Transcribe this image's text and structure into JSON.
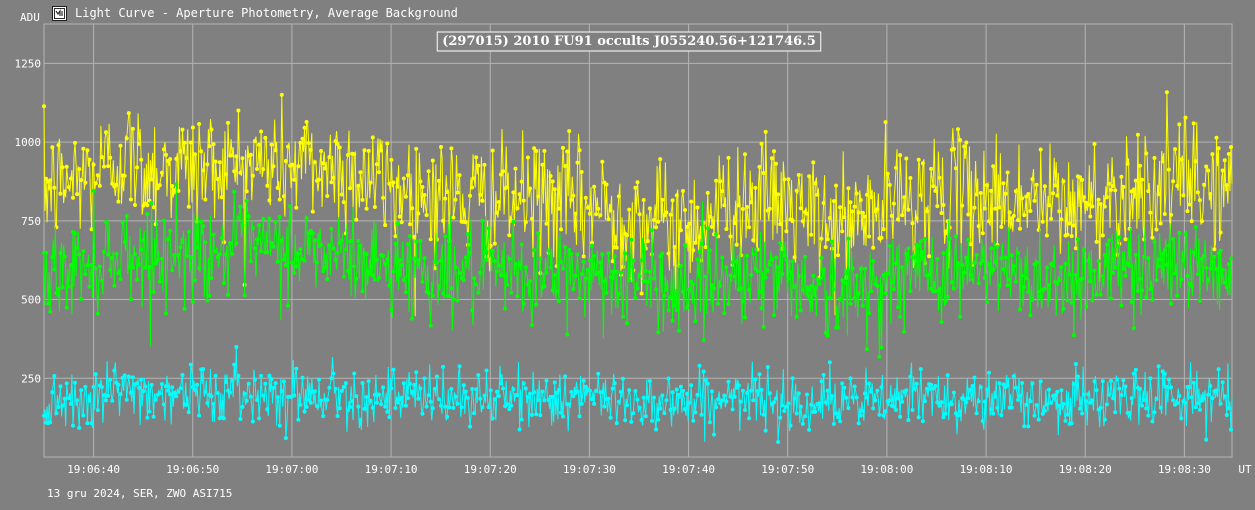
{
  "window": {
    "title": "Light Curve - Aperture Photometry, Average Background",
    "icon": "light-curve-app-icon"
  },
  "footer": {
    "text": "13 gru 2024, SER, ZWO ASI715"
  },
  "colors": {
    "background": "#808080",
    "grid": "#b4b4b4",
    "axis_text": "#ffffff",
    "series_yellow": "#ffff00",
    "series_green": "#00ff00",
    "series_cyan": "#00ffff"
  },
  "chart_data": {
    "type": "line",
    "title": "(297015) 2010 FU91 occults J055240.56+121746.5",
    "ylabel": "ADU",
    "xlabel": "UT",
    "ylim": [
      0,
      1375
    ],
    "yticks": [
      250,
      500,
      750,
      1000,
      1250
    ],
    "x_tick_labels": [
      "19:06:40",
      "19:06:50",
      "19:07:00",
      "19:07:10",
      "19:07:20",
      "19:07:30",
      "19:07:40",
      "19:07:50",
      "19:08:00",
      "19:08:10",
      "19:08:20",
      "19:08:30"
    ],
    "grid": true,
    "markers": true,
    "series": [
      {
        "color": "#ffff00",
        "x": [
          "19:06:35",
          "19:06:40",
          "19:06:43",
          "19:06:45",
          "19:06:50",
          "19:06:55",
          "19:07:00",
          "19:07:05",
          "19:07:10",
          "19:07:15",
          "19:07:20",
          "19:07:25",
          "19:07:30",
          "19:07:35",
          "19:07:40",
          "19:07:45",
          "19:07:50",
          "19:07:55",
          "19:08:00",
          "19:08:05",
          "19:08:10",
          "19:08:15",
          "19:08:20",
          "19:08:25",
          "19:08:30",
          "19:08:34"
        ],
        "values": [
          850,
          900,
          960,
          920,
          920,
          930,
          930,
          920,
          860,
          830,
          810,
          820,
          800,
          760,
          730,
          820,
          800,
          720,
          800,
          840,
          830,
          810,
          800,
          860,
          880,
          850
        ]
      },
      {
        "color": "#00ff00",
        "x": [
          "19:06:35",
          "19:06:40",
          "19:06:43",
          "19:06:45",
          "19:06:50",
          "19:06:55",
          "19:07:00",
          "19:07:05",
          "19:07:10",
          "19:07:15",
          "19:07:20",
          "19:07:25",
          "19:07:30",
          "19:07:35",
          "19:07:40",
          "19:07:45",
          "19:07:50",
          "19:07:55",
          "19:08:00",
          "19:08:05",
          "19:08:10",
          "19:08:15",
          "19:08:20",
          "19:08:25",
          "19:08:30",
          "19:08:34"
        ],
        "values": [
          570,
          620,
          660,
          640,
          650,
          660,
          660,
          640,
          600,
          590,
          580,
          580,
          580,
          560,
          540,
          590,
          580,
          510,
          560,
          600,
          590,
          570,
          570,
          610,
          620,
          580
        ]
      },
      {
        "color": "#00ffff",
        "x": [
          "19:06:35",
          "19:06:40",
          "19:06:43",
          "19:06:45",
          "19:06:50",
          "19:06:55",
          "19:07:00",
          "19:07:05",
          "19:07:10",
          "19:07:15",
          "19:07:20",
          "19:07:25",
          "19:07:30",
          "19:07:35",
          "19:07:40",
          "19:07:45",
          "19:07:50",
          "19:07:55",
          "19:08:00",
          "19:08:05",
          "19:08:10",
          "19:08:15",
          "19:08:20",
          "19:08:25",
          "19:08:30",
          "19:08:34"
        ],
        "values": [
          180,
          200,
          215,
          205,
          205,
          205,
          205,
          200,
          190,
          185,
          185,
          190,
          185,
          180,
          175,
          185,
          180,
          170,
          180,
          195,
          185,
          180,
          180,
          190,
          195,
          185
        ]
      }
    ]
  }
}
